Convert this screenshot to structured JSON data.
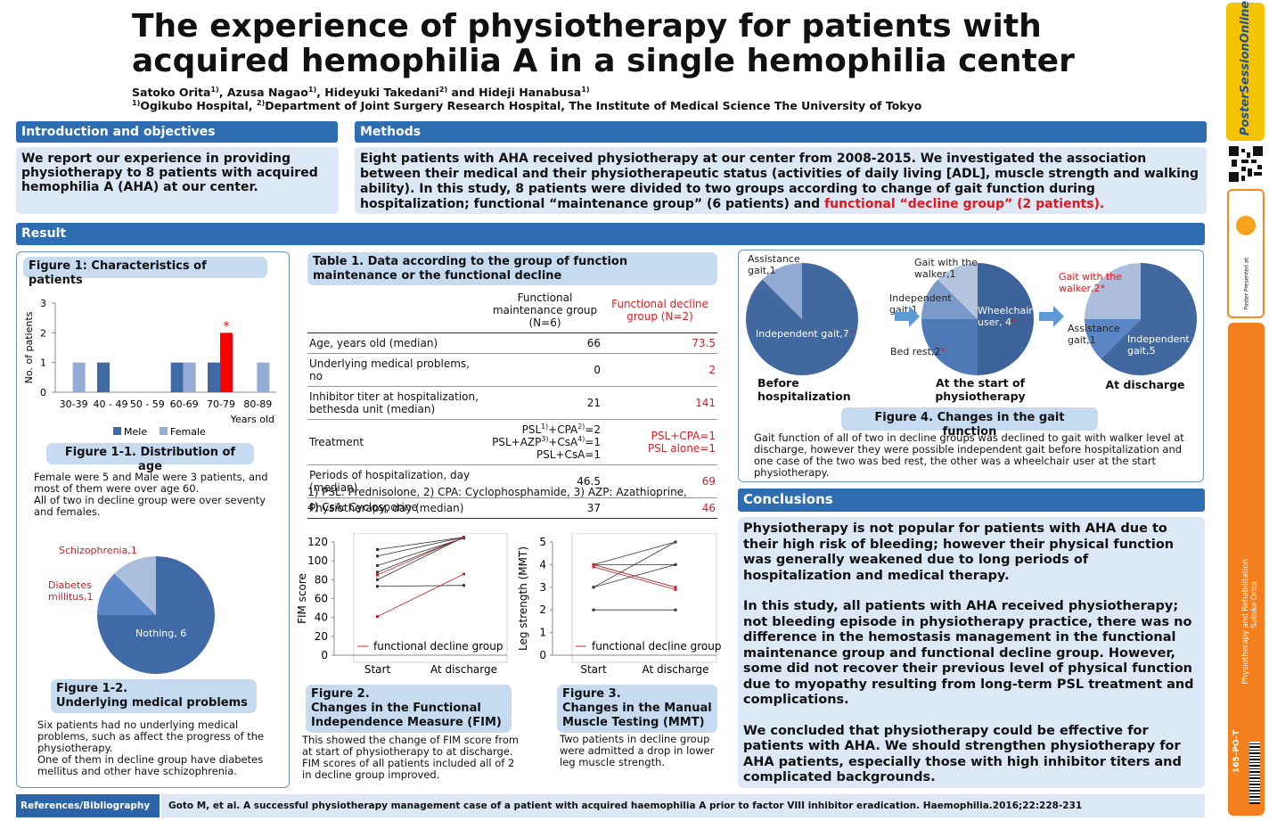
{
  "header": {
    "title_lines": [
      "The experience of physiotherapy for patients with",
      "acquired hemophilia A in a single hemophilia center"
    ],
    "authors": [
      "Satoko Orita",
      {
        "sup": "1)"
      },
      ", Azusa Nagao",
      {
        "sup": "1)"
      },
      ", Hideyuki Takedani",
      {
        "sup": "2)"
      },
      " and Hideji Hanabusa",
      {
        "sup": "1)"
      }
    ],
    "affiliations": [
      {
        "sup": "1)"
      },
      "Ogikubo Hospital, ",
      {
        "sup": "2)"
      },
      "Department of Joint Surgery Research Hospital, The Institute of Medical Science The University of Tokyo"
    ]
  },
  "intro": {
    "heading": "Introduction and objectives",
    "body": "We report our experience in providing physiotherapy to 8 patients with acquired hemophilia A (AHA) at our center."
  },
  "methods": {
    "heading": "Methods",
    "body": [
      "Eight patients with AHA received physiotherapy at our center from 2008-2015. We investigated the association between their medical and their physiotherapeutic status (activities of daily living [ADL], muscle strength and walking ability). In this study, 8 patients were divided to two groups according to change of gait function during hospitalization; functional “maintenance group” (6 patients) and ",
      {
        "text": "functional “decline group” (2 patients).",
        "color": "#e8141b"
      }
    ]
  },
  "result": {
    "heading": "Result",
    "fig1_heading": "Figure 1: Characteristics of patients",
    "fig1_1_text": [
      "Female were 5 and Male were 3 patients, and most of them were over age 60.",
      "All of two in decline group were over seventy and females."
    ],
    "fig1_2_text": [
      "Six patients had no underlying medical problems, such as affect the progress of the physiotherapy.",
      "One of them in decline group have diabetes mellitus and other have schizophrenia."
    ],
    "table": {
      "title": "Table 1. Data according to the group of function maintenance or the functional decline",
      "headers": [
        "Functional maintenance group (N=6)",
        "Functional decline group (N=2)"
      ],
      "rows": [
        [
          "Age, years old (median)",
          66,
          73.5
        ],
        [
          "Underlying medical problems, no",
          0,
          2
        ],
        [
          "Inhibitor titer at hospitalization, bethesda unit (median)",
          21,
          141
        ],
        [
          "Treatment",
          [
            [
              "PSL",
              {
                "sup": "1)"
              },
              "+CPA",
              {
                "sup": "2)"
              },
              "=2"
            ],
            [
              "PSL+AZP",
              {
                "sup": "3)"
              },
              "+CsA",
              {
                "sup": "4)"
              },
              "=1"
            ],
            "PSL+CsA=1"
          ],
          [
            "PSL+CPA=1",
            "PSL alone=1"
          ]
        ],
        [
          "Periods of hospitalization, day (median)",
          46.5,
          69
        ],
        [
          "Physiotherapy, day (median)",
          37,
          46
        ]
      ],
      "footnote": "1) PSL: Prednisolone, 2) CPA: Cyclophosphamide, 3) AZP: Azathioprine, 4) CsA: Cyclosporine"
    },
    "fig2_text": "This showed the change of FIM score from at start of physiotherapy to at discharge. FIM scores of all patients included all of 2 in decline group improved.",
    "fig3_text": "Two patients in decline group were admitted a drop in lower leg muscle strength.",
    "fig4_caption": "Figure 4. Changes in the gait function",
    "fig4_text": "Gait function of all of two in decline groups was declined to gait with walker level at discharge, however they were possible independent gait before hospitalization and one case of the two was bed rest, the other was a wheelchair user at the start physiotherapy."
  },
  "conclusions": {
    "heading": "Conclusions",
    "paragraphs": [
      "Physiotherapy is not popular for patients with AHA due to their high risk of bleeding; however their physical function was generally weakened due to long periods of hospitalization and medical therapy.",
      "In this study, all patients with AHA received physiotherapy; not bleeding episode in physiotherapy practice, there was no difference in the hemostasis management in the functional maintenance group and functional decline group. However, some did not recover their previous level of physical function due to myopathy resulting from long-term PSL treatment and complications.",
      "We concluded that physiotherapy could be effective for patients with AHA. We should strengthen physiotherapy for AHA patients, especially those with high inhibitor titers and complicated backgrounds."
    ]
  },
  "references": {
    "label": "References/Bibliography",
    "text": "Goto M, et al. A successful physiotherapy management case of a patient with acquired haemophilia A prior to factor VIII inhibitor eradication. Haemophilia.2016;22:228-231"
  },
  "sidebar": {
    "brand": "PosterSessionOnline",
    "presented": "Poster Presented at:",
    "code": "165–PO–T",
    "topic": "Physiotherapy and Rehabilitation",
    "author": "Satoko Orita"
  },
  "chart_data": [
    {
      "type": "bar",
      "title": "Figure 1-1. Distribution of age",
      "categories": [
        "30-39",
        "40 - 49",
        "50 - 59",
        "60-69",
        "70-79",
        "80-89"
      ],
      "series": [
        {
          "name": "Mele",
          "color": "#3f6aa6",
          "values": [
            0,
            1,
            0,
            1,
            1,
            0
          ]
        },
        {
          "name": "Female",
          "color": "#94acd6",
          "values": [
            1,
            0,
            0,
            1,
            2,
            1
          ],
          "point_colors": [
            null,
            null,
            null,
            null,
            "#ff0000",
            null
          ]
        }
      ],
      "annotations": [
        {
          "text": "*",
          "series": 1,
          "index": 4,
          "color": "#ff0000"
        }
      ],
      "xlabel": "Years old",
      "ylabel": "No. of patients",
      "ylim": [
        0,
        3
      ],
      "yticks": [
        0,
        1,
        2,
        3
      ],
      "legend": "bottom"
    },
    {
      "type": "pie",
      "title": [
        "Figure 1-2.",
        "Underlying medical problems"
      ],
      "labels": [
        "Nothing, 6",
        "Diabetes millitus,1",
        "Schizophrenia,1"
      ],
      "values": [
        6,
        1,
        1
      ],
      "colors": [
        "#3f6aa6",
        "#5b86c5",
        "#aabddc"
      ]
    },
    {
      "type": "slope",
      "title": [
        "Figure 2.",
        "Changes in the Functional",
        "Independence Measure (FIM)"
      ],
      "categories": [
        "Start",
        "At discharge"
      ],
      "ylabel": "FIM score",
      "ylim": [
        0,
        120
      ],
      "yticks": [
        0,
        20,
        40,
        60,
        80,
        100,
        120
      ],
      "series": [
        {
          "name": "functional decline group",
          "color": "#c0282d",
          "lines": [
            [
              41,
              86
            ],
            [
              85,
              125
            ]
          ]
        },
        {
          "color": "#333333",
          "lines": [
            [
              112,
              125
            ],
            [
              105,
              125
            ],
            [
              95,
              124
            ],
            [
              88,
              125
            ],
            [
              80,
              125
            ],
            [
              73,
              74
            ]
          ]
        }
      ]
    },
    {
      "type": "slope",
      "title": [
        "Figure 3.",
        "Changes in the Manual",
        "Muscle Testing (MMT)"
      ],
      "categories": [
        "Start",
        "At discharge"
      ],
      "ylabel": "Leg strength (MMT)",
      "ylim": [
        0,
        5
      ],
      "yticks": [
        0,
        1,
        2,
        3,
        4,
        5
      ],
      "series": [
        {
          "name": "functional decline group",
          "color": "#c0282d",
          "lines": [
            [
              4,
              3
            ],
            [
              3.9,
              2.9
            ]
          ]
        },
        {
          "color": "#333333",
          "lines": [
            [
              4,
              5
            ],
            [
              3,
              5
            ],
            [
              4,
              4
            ],
            [
              3,
              4
            ],
            [
              2,
              2
            ],
            [
              4,
              3
            ]
          ]
        }
      ]
    },
    {
      "type": "pie",
      "title": "Before hospitalization",
      "labels": [
        "Independent gait,7",
        "Assistance gait,1"
      ],
      "values": [
        7,
        1
      ],
      "colors": [
        "#41689f",
        "#93abd3"
      ],
      "annotation": "*",
      "starred": [
        0
      ]
    },
    {
      "type": "pie",
      "title": "At the start of physiotherapy",
      "labels": [
        "Wheelchair user, 4",
        "Bed rest,2",
        "Independent gait,1",
        "Gait with the walker,1"
      ],
      "values": [
        4,
        2,
        1,
        1
      ],
      "colors": [
        "#3e639b",
        "#4e79b6",
        "#7b99c9",
        "#b4c4df"
      ],
      "annotation": "*",
      "starred": [
        0,
        1
      ]
    },
    {
      "type": "pie",
      "title": "At discharge",
      "labels": [
        "Independent gait,5",
        "Assistance gait,1",
        "Gait with the walker,2"
      ],
      "values": [
        5,
        1,
        2
      ],
      "colors": [
        "#41689f",
        "#5b86c5",
        "#adbedc"
      ],
      "annotation": "*",
      "starred": [
        2
      ]
    }
  ]
}
